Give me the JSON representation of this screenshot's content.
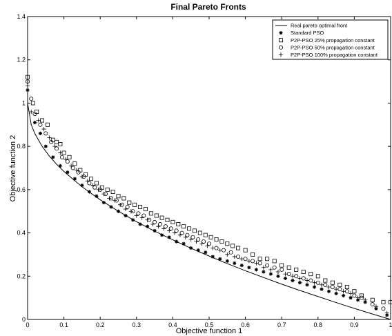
{
  "chart_data": {
    "type": "scatter",
    "title": "Final Pareto Fronts",
    "xlabel": "Objective function 1",
    "ylabel": "Objective function 2",
    "xlim": [
      0,
      1
    ],
    "ylim": [
      0,
      1.4
    ],
    "xticks": [
      "0",
      "0.1",
      "0.2",
      "0.3",
      "0.4",
      "0.5",
      "0.6",
      "0.7",
      "0.8",
      "0.9",
      "1"
    ],
    "yticks": [
      "0",
      "0.2",
      "0.4",
      "0.6",
      "0.8",
      "1",
      "1.2",
      "1.4"
    ],
    "grid": false,
    "legend_position": "top-right",
    "series": [
      {
        "name": "Real pareto optimal front",
        "kind": "line",
        "x": [
          0,
          0.01,
          0.02,
          0.04,
          0.06,
          0.08,
          0.1,
          0.15,
          0.2,
          0.25,
          0.3,
          0.35,
          0.4,
          0.45,
          0.5,
          0.55,
          0.6,
          0.65,
          0.7,
          0.75,
          0.8,
          0.85,
          0.9,
          0.95,
          1.0
        ],
        "y": [
          1.0,
          0.9,
          0.859,
          0.8,
          0.755,
          0.717,
          0.684,
          0.613,
          0.553,
          0.5,
          0.452,
          0.408,
          0.368,
          0.329,
          0.293,
          0.258,
          0.225,
          0.194,
          0.163,
          0.134,
          0.106,
          0.078,
          0.051,
          0.025,
          0.0
        ]
      },
      {
        "name": "Standard PSO",
        "marker": "star",
        "x": [
          0.0,
          0.02,
          0.035,
          0.05,
          0.07,
          0.09,
          0.11,
          0.13,
          0.15,
          0.17,
          0.19,
          0.21,
          0.23,
          0.25,
          0.27,
          0.29,
          0.31,
          0.33,
          0.35,
          0.37,
          0.39,
          0.41,
          0.43,
          0.45,
          0.47,
          0.49,
          0.51,
          0.53,
          0.55,
          0.57,
          0.59,
          0.61,
          0.63,
          0.65,
          0.67,
          0.69,
          0.71,
          0.73,
          0.75,
          0.77,
          0.79,
          0.81,
          0.83,
          0.85,
          0.87,
          0.89,
          0.91,
          0.93,
          0.96,
          0.99
        ],
        "y": [
          1.06,
          0.91,
          0.86,
          0.8,
          0.75,
          0.71,
          0.68,
          0.65,
          0.62,
          0.59,
          0.57,
          0.54,
          0.52,
          0.5,
          0.48,
          0.46,
          0.44,
          0.43,
          0.41,
          0.39,
          0.38,
          0.36,
          0.35,
          0.33,
          0.32,
          0.31,
          0.29,
          0.28,
          0.27,
          0.26,
          0.25,
          0.24,
          0.23,
          0.22,
          0.21,
          0.2,
          0.19,
          0.18,
          0.17,
          0.16,
          0.15,
          0.14,
          0.13,
          0.12,
          0.11,
          0.1,
          0.09,
          0.08,
          0.05,
          0.02
        ]
      },
      {
        "name": "P2P-PSO 25% propagation constant",
        "marker": "square",
        "x": [
          0.0,
          0.015,
          0.025,
          0.04,
          0.055,
          0.07,
          0.08,
          0.09,
          0.1,
          0.115,
          0.13,
          0.145,
          0.16,
          0.175,
          0.19,
          0.205,
          0.22,
          0.235,
          0.25,
          0.265,
          0.28,
          0.295,
          0.31,
          0.325,
          0.34,
          0.355,
          0.37,
          0.385,
          0.4,
          0.415,
          0.43,
          0.445,
          0.46,
          0.475,
          0.49,
          0.505,
          0.52,
          0.535,
          0.55,
          0.565,
          0.58,
          0.6,
          0.62,
          0.64,
          0.66,
          0.68,
          0.7,
          0.72,
          0.74,
          0.76,
          0.78,
          0.8,
          0.82,
          0.84,
          0.86,
          0.88,
          0.9,
          0.92,
          0.95,
          0.98,
          1.0
        ],
        "y": [
          1.12,
          1.0,
          0.96,
          0.92,
          0.9,
          0.83,
          0.82,
          0.81,
          0.77,
          0.75,
          0.72,
          0.69,
          0.67,
          0.65,
          0.63,
          0.61,
          0.6,
          0.59,
          0.57,
          0.56,
          0.54,
          0.53,
          0.52,
          0.51,
          0.49,
          0.48,
          0.47,
          0.46,
          0.45,
          0.44,
          0.43,
          0.42,
          0.41,
          0.4,
          0.39,
          0.38,
          0.37,
          0.36,
          0.35,
          0.34,
          0.33,
          0.32,
          0.3,
          0.28,
          0.28,
          0.27,
          0.25,
          0.24,
          0.23,
          0.22,
          0.21,
          0.2,
          0.18,
          0.17,
          0.16,
          0.15,
          0.13,
          0.11,
          0.09,
          0.08,
          0.08
        ]
      },
      {
        "name": "P2P-PSO 50% propagation constant",
        "marker": "circle",
        "x": [
          0.0,
          0.01,
          0.02,
          0.035,
          0.05,
          0.065,
          0.08,
          0.095,
          0.11,
          0.125,
          0.14,
          0.155,
          0.17,
          0.185,
          0.2,
          0.215,
          0.23,
          0.245,
          0.26,
          0.275,
          0.29,
          0.305,
          0.32,
          0.335,
          0.35,
          0.365,
          0.38,
          0.395,
          0.41,
          0.425,
          0.44,
          0.455,
          0.47,
          0.485,
          0.5,
          0.52,
          0.54,
          0.56,
          0.58,
          0.6,
          0.62,
          0.64,
          0.66,
          0.68,
          0.7,
          0.72,
          0.74,
          0.76,
          0.78,
          0.8,
          0.82,
          0.84,
          0.86,
          0.88,
          0.9,
          0.92,
          0.95,
          0.98
        ],
        "y": [
          1.1,
          1.02,
          0.95,
          0.9,
          0.86,
          0.82,
          0.79,
          0.75,
          0.73,
          0.7,
          0.68,
          0.66,
          0.63,
          0.61,
          0.6,
          0.58,
          0.56,
          0.55,
          0.53,
          0.52,
          0.5,
          0.49,
          0.48,
          0.46,
          0.45,
          0.44,
          0.43,
          0.42,
          0.41,
          0.4,
          0.39,
          0.38,
          0.37,
          0.36,
          0.35,
          0.33,
          0.32,
          0.31,
          0.29,
          0.28,
          0.27,
          0.26,
          0.25,
          0.24,
          0.23,
          0.21,
          0.2,
          0.19,
          0.18,
          0.17,
          0.16,
          0.15,
          0.14,
          0.13,
          0.11,
          0.1,
          0.07,
          0.05
        ]
      },
      {
        "name": "P2P-PSO 100% propagation constant",
        "marker": "plus",
        "x": [
          0.0,
          0.01,
          0.03,
          0.045,
          0.06,
          0.075,
          0.09,
          0.105,
          0.12,
          0.135,
          0.15,
          0.165,
          0.18,
          0.195,
          0.21,
          0.225,
          0.24,
          0.255,
          0.27,
          0.285,
          0.3,
          0.315,
          0.33,
          0.345,
          0.36,
          0.375,
          0.39,
          0.405,
          0.42,
          0.435,
          0.45,
          0.465,
          0.48,
          0.495,
          0.51,
          0.53,
          0.55,
          0.57,
          0.59,
          0.61,
          0.63,
          0.65,
          0.67,
          0.69,
          0.71,
          0.73,
          0.75,
          0.77,
          0.79,
          0.81,
          0.83,
          0.85,
          0.87,
          0.89,
          0.91,
          0.93,
          0.96,
          0.99
        ],
        "y": [
          1.08,
          0.96,
          0.92,
          0.88,
          0.84,
          0.8,
          0.77,
          0.74,
          0.71,
          0.69,
          0.66,
          0.64,
          0.62,
          0.6,
          0.58,
          0.56,
          0.55,
          0.53,
          0.51,
          0.5,
          0.48,
          0.47,
          0.46,
          0.44,
          0.43,
          0.42,
          0.41,
          0.4,
          0.39,
          0.38,
          0.37,
          0.36,
          0.35,
          0.34,
          0.33,
          0.32,
          0.3,
          0.29,
          0.28,
          0.27,
          0.26,
          0.24,
          0.23,
          0.22,
          0.21,
          0.2,
          0.19,
          0.18,
          0.17,
          0.16,
          0.15,
          0.14,
          0.13,
          0.12,
          0.1,
          0.09,
          0.06,
          0.03
        ]
      }
    ]
  }
}
